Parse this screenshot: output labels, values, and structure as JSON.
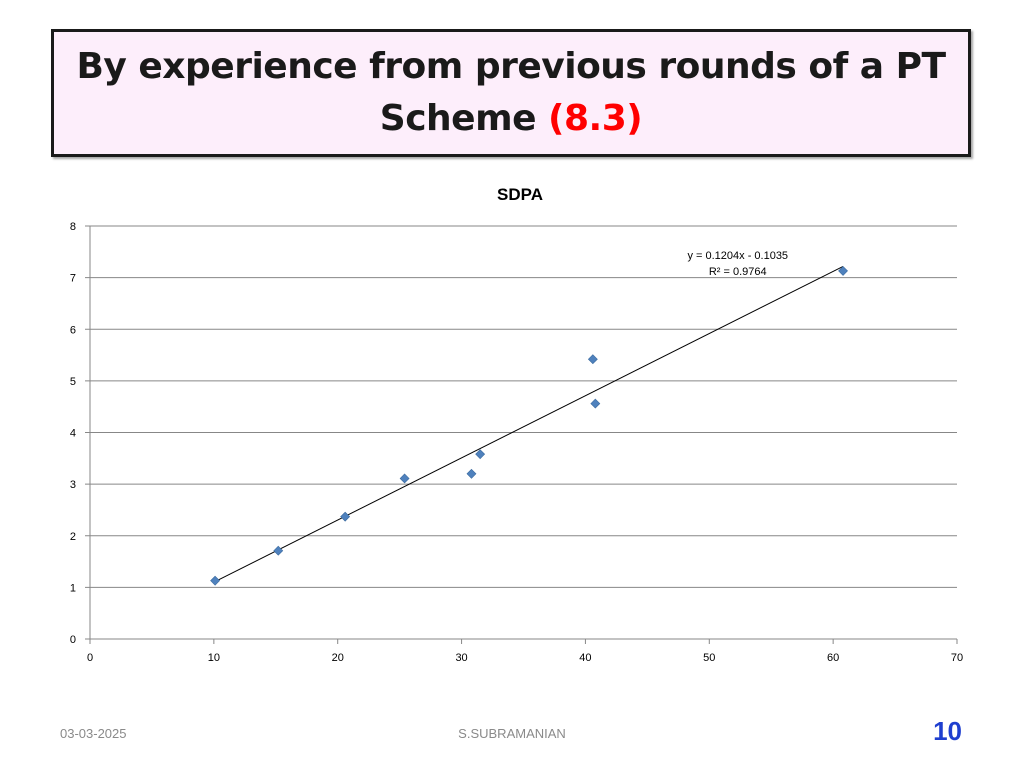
{
  "slide": {
    "title_line1": "By experience from previous rounds of a PT",
    "title_line2_prefix": "Scheme ",
    "title_line2_accent": "(8.3)",
    "footer_date": "03-03-2025",
    "footer_author": "S.SUBRAMANIAN",
    "page_number": "10",
    "colors": {
      "title_background": "#fdeefb",
      "accent": "#ff0000",
      "page_number": "#1f3fcf",
      "marker": "#4f81bd"
    }
  },
  "chart_data": {
    "type": "scatter",
    "title": "SDPA",
    "xlabel": "",
    "ylabel": "",
    "xlim": [
      0,
      70
    ],
    "ylim": [
      0,
      8
    ],
    "x_ticks": [
      0,
      10,
      20,
      30,
      40,
      50,
      60,
      70
    ],
    "y_ticks": [
      0,
      1,
      2,
      3,
      4,
      5,
      6,
      7,
      8
    ],
    "grid": "horizontal",
    "legend": "none",
    "series": [
      {
        "x": [
          10.1,
          15.2,
          20.6,
          25.4,
          30.8,
          31.5,
          40.6,
          40.8,
          60.8
        ],
        "y": [
          1.13,
          1.71,
          2.37,
          3.11,
          3.2,
          3.58,
          5.42,
          4.56,
          7.13
        ]
      }
    ],
    "trendline": {
      "slope": 0.1204,
      "intercept": -0.1035,
      "x_range": [
        10.1,
        60.8
      ],
      "equation": "y = 0.1204x - 0.1035",
      "r_squared": "R² = 0.9764"
    }
  }
}
